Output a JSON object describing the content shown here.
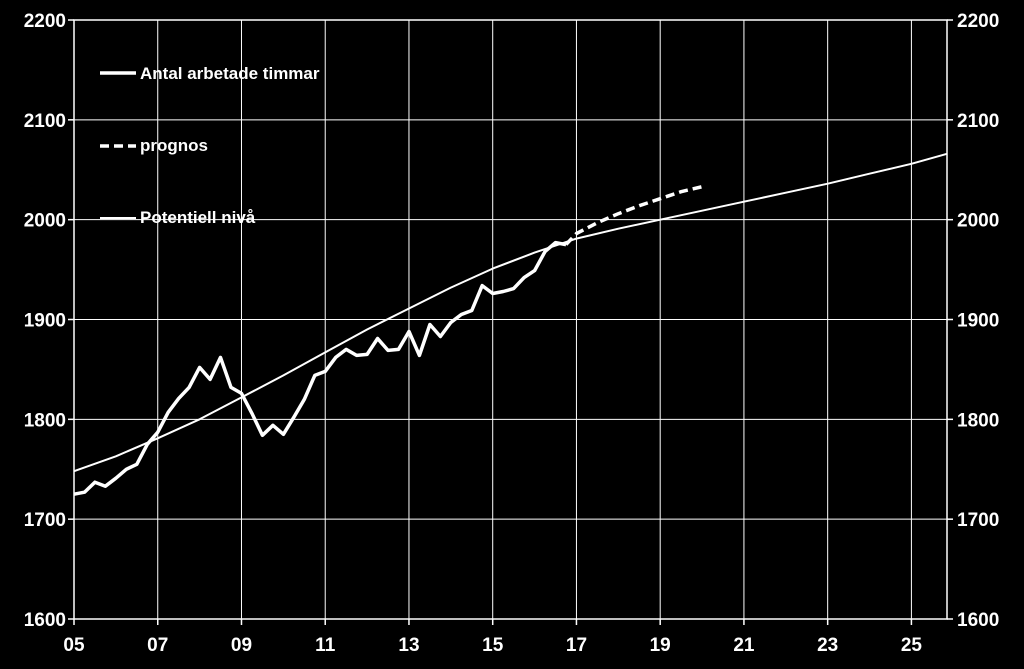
{
  "chart_data": {
    "type": "line",
    "xlim": [
      2005,
      2025.85
    ],
    "ylim": [
      1600,
      2200
    ],
    "grid": true,
    "legend_position": "top-left",
    "x_ticks": [
      {
        "label": "05",
        "value": 2005
      },
      {
        "label": "07",
        "value": 2007
      },
      {
        "label": "09",
        "value": 2009
      },
      {
        "label": "11",
        "value": 2011
      },
      {
        "label": "13",
        "value": 2013
      },
      {
        "label": "15",
        "value": 2015
      },
      {
        "label": "17",
        "value": 2017
      },
      {
        "label": "19",
        "value": 2019
      },
      {
        "label": "21",
        "value": 2021
      },
      {
        "label": "23",
        "value": 2023
      },
      {
        "label": "25",
        "value": 2025
      }
    ],
    "y_ticks": [
      {
        "label": "1600",
        "value": 1600
      },
      {
        "label": "1700",
        "value": 1700
      },
      {
        "label": "1800",
        "value": 1800
      },
      {
        "label": "1900",
        "value": 1900
      },
      {
        "label": "2000",
        "value": 2000
      },
      {
        "label": "2100",
        "value": 2100
      },
      {
        "label": "2200",
        "value": 2200
      }
    ],
    "series": [
      {
        "name": "Antal arbetade timmar",
        "style": "solid-thick",
        "color": "#ffffff",
        "points": [
          [
            2005.0,
            1725
          ],
          [
            2005.25,
            1727
          ],
          [
            2005.5,
            1737
          ],
          [
            2005.75,
            1733
          ],
          [
            2006.0,
            1741
          ],
          [
            2006.25,
            1750
          ],
          [
            2006.5,
            1755
          ],
          [
            2006.75,
            1775
          ],
          [
            2007.0,
            1787
          ],
          [
            2007.25,
            1807
          ],
          [
            2007.5,
            1821
          ],
          [
            2007.75,
            1832
          ],
          [
            2008.0,
            1852
          ],
          [
            2008.25,
            1840
          ],
          [
            2008.5,
            1862
          ],
          [
            2008.75,
            1832
          ],
          [
            2009.0,
            1826
          ],
          [
            2009.25,
            1806
          ],
          [
            2009.5,
            1784
          ],
          [
            2009.75,
            1794
          ],
          [
            2010.0,
            1785
          ],
          [
            2010.25,
            1802
          ],
          [
            2010.5,
            1820
          ],
          [
            2010.75,
            1844
          ],
          [
            2011.0,
            1848
          ],
          [
            2011.25,
            1862
          ],
          [
            2011.5,
            1870
          ],
          [
            2011.75,
            1864
          ],
          [
            2012.0,
            1865
          ],
          [
            2012.25,
            1881
          ],
          [
            2012.5,
            1869
          ],
          [
            2012.75,
            1870
          ],
          [
            2013.0,
            1888
          ],
          [
            2013.25,
            1864
          ],
          [
            2013.5,
            1895
          ],
          [
            2013.75,
            1883
          ],
          [
            2014.0,
            1897
          ],
          [
            2014.25,
            1905
          ],
          [
            2014.5,
            1909
          ],
          [
            2014.75,
            1934
          ],
          [
            2015.0,
            1926
          ],
          [
            2015.25,
            1928
          ],
          [
            2015.5,
            1931
          ],
          [
            2015.75,
            1942
          ],
          [
            2016.0,
            1949
          ],
          [
            2016.25,
            1968
          ],
          [
            2016.5,
            1977
          ],
          [
            2016.75,
            1975
          ]
        ]
      },
      {
        "name": "prognos",
        "style": "dashed",
        "color": "#ffffff",
        "points": [
          [
            2016.75,
            1975
          ],
          [
            2017.0,
            1986
          ],
          [
            2017.5,
            1997
          ],
          [
            2018.0,
            2006
          ],
          [
            2018.5,
            2014
          ],
          [
            2019.0,
            2021
          ],
          [
            2019.5,
            2028
          ],
          [
            2020.0,
            2033
          ]
        ]
      },
      {
        "name": "Potentiell nivå",
        "style": "solid-thin",
        "color": "#ffffff",
        "points": [
          [
            2005.0,
            1748
          ],
          [
            2006.0,
            1763
          ],
          [
            2007.0,
            1781
          ],
          [
            2008.0,
            1800
          ],
          [
            2009.0,
            1822
          ],
          [
            2010.0,
            1844
          ],
          [
            2011.0,
            1867
          ],
          [
            2012.0,
            1890
          ],
          [
            2013.0,
            1911
          ],
          [
            2014.0,
            1932
          ],
          [
            2015.0,
            1951
          ],
          [
            2016.0,
            1967
          ],
          [
            2017.0,
            1981
          ],
          [
            2018.0,
            1991
          ],
          [
            2019.0,
            2000
          ],
          [
            2020.0,
            2009
          ],
          [
            2021.0,
            2018
          ],
          [
            2022.0,
            2027
          ],
          [
            2023.0,
            2036
          ],
          [
            2024.0,
            2046
          ],
          [
            2025.0,
            2056
          ],
          [
            2025.85,
            2066
          ]
        ]
      }
    ]
  }
}
